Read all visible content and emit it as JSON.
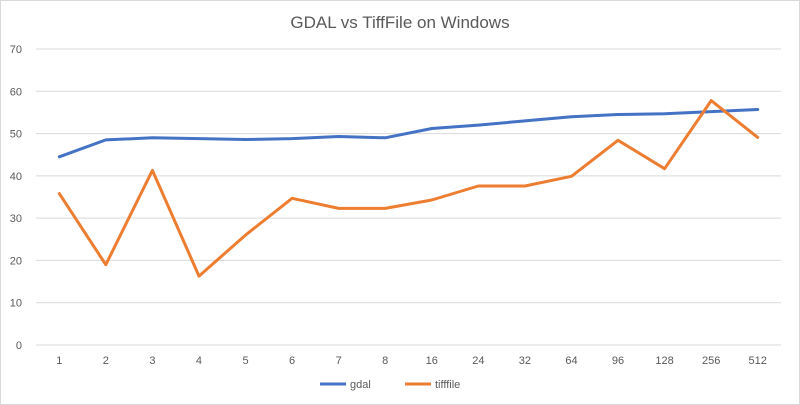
{
  "chart_data": {
    "type": "line",
    "title": "GDAL vs TiffFile on Windows",
    "xlabel": "",
    "ylabel": "",
    "categories": [
      "1",
      "2",
      "3",
      "4",
      "5",
      "6",
      "7",
      "8",
      "16",
      "24",
      "32",
      "64",
      "96",
      "128",
      "256",
      "512"
    ],
    "ylim": [
      0,
      70
    ],
    "yticks": [
      "0",
      "10",
      "20",
      "30",
      "40",
      "50",
      "60",
      "70"
    ],
    "grid": true,
    "legend_position": "bottom",
    "series": [
      {
        "name": "gdal",
        "color": "#4472c4",
        "values": [
          44.5,
          48.5,
          49.0,
          48.8,
          48.6,
          48.8,
          49.3,
          49.0,
          51.2,
          52.0,
          53.0,
          54.0,
          54.5,
          54.7,
          55.2,
          55.7
        ]
      },
      {
        "name": "tifffile",
        "color": "#ed7d31",
        "values": [
          35.8,
          19.0,
          41.3,
          16.3,
          26.0,
          34.7,
          32.3,
          32.3,
          34.3,
          37.6,
          37.6,
          39.9,
          48.4,
          41.7,
          57.8,
          49.1
        ]
      }
    ]
  }
}
